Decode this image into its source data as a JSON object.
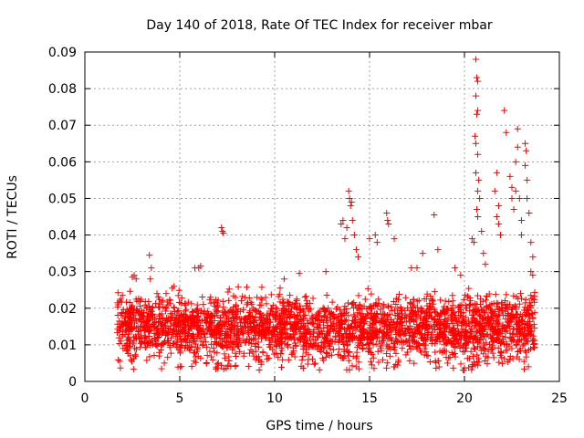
{
  "chart_data": {
    "type": "scatter",
    "title": "Day 140 of 2018, Rate Of TEC Index for receiver mbar",
    "xlabel": "GPS time / hours",
    "ylabel": "ROTI / TECUs",
    "xlim": [
      0,
      25
    ],
    "ylim": [
      0,
      0.09
    ],
    "xticks": [
      0,
      5,
      10,
      15,
      20,
      25
    ],
    "yticks": [
      0,
      0.01,
      0.02,
      0.03,
      0.04,
      0.05,
      0.06,
      0.07,
      0.08,
      0.09
    ],
    "x_tick_labels": [
      "0",
      "5",
      "10",
      "15",
      "20",
      "25"
    ],
    "y_tick_labels": [
      "0",
      "0.01",
      "0.02",
      "0.03",
      "0.04",
      "0.05",
      "0.06",
      "0.07",
      "0.08",
      "0.09"
    ],
    "grid": true,
    "marker": "+",
    "series": [
      {
        "name": "ROTI",
        "color": "#ff0000",
        "background_band": {
          "x_range": [
            1.7,
            23.7
          ],
          "y_typical_range": [
            0.003,
            0.027
          ],
          "approx_point_count": 2800
        },
        "points": [
          [
            2.6,
            0.029
          ],
          [
            2.7,
            0.028
          ],
          [
            2.5,
            0.0285
          ],
          [
            3.4,
            0.0345
          ],
          [
            3.5,
            0.031
          ],
          [
            3.45,
            0.028
          ],
          [
            4.6,
            0.0255
          ],
          [
            4.7,
            0.026
          ],
          [
            5.8,
            0.031
          ],
          [
            6.0,
            0.031
          ],
          [
            6.1,
            0.0315
          ],
          [
            7.2,
            0.042
          ],
          [
            7.25,
            0.041
          ],
          [
            7.3,
            0.0405
          ],
          [
            10.5,
            0.028
          ],
          [
            11.3,
            0.0295
          ],
          [
            12.7,
            0.03
          ],
          [
            13.5,
            0.043
          ],
          [
            13.6,
            0.044
          ],
          [
            13.7,
            0.039
          ],
          [
            13.8,
            0.042
          ],
          [
            13.9,
            0.052
          ],
          [
            13.95,
            0.05
          ],
          [
            14.0,
            0.048
          ],
          [
            14.05,
            0.049
          ],
          [
            14.1,
            0.044
          ],
          [
            14.2,
            0.04
          ],
          [
            14.3,
            0.036
          ],
          [
            14.4,
            0.034
          ],
          [
            15.0,
            0.039
          ],
          [
            15.3,
            0.04
          ],
          [
            15.4,
            0.038
          ],
          [
            15.9,
            0.046
          ],
          [
            15.95,
            0.044
          ],
          [
            16.0,
            0.043
          ],
          [
            16.3,
            0.039
          ],
          [
            17.2,
            0.031
          ],
          [
            17.5,
            0.031
          ],
          [
            17.8,
            0.035
          ],
          [
            18.4,
            0.0455
          ],
          [
            18.6,
            0.036
          ],
          [
            19.5,
            0.031
          ],
          [
            19.8,
            0.029
          ],
          [
            20.4,
            0.039
          ],
          [
            20.5,
            0.038
          ],
          [
            20.6,
            0.088
          ],
          [
            20.65,
            0.083
          ],
          [
            20.7,
            0.082
          ],
          [
            20.6,
            0.078
          ],
          [
            20.7,
            0.074
          ],
          [
            20.65,
            0.073
          ],
          [
            20.55,
            0.067
          ],
          [
            20.6,
            0.065
          ],
          [
            20.7,
            0.062
          ],
          [
            20.6,
            0.057
          ],
          [
            20.75,
            0.055
          ],
          [
            20.7,
            0.052
          ],
          [
            20.8,
            0.05
          ],
          [
            20.65,
            0.047
          ],
          [
            20.7,
            0.045
          ],
          [
            20.9,
            0.041
          ],
          [
            21.0,
            0.035
          ],
          [
            21.1,
            0.032
          ],
          [
            21.6,
            0.052
          ],
          [
            21.7,
            0.057
          ],
          [
            21.8,
            0.048
          ],
          [
            21.7,
            0.045
          ],
          [
            21.8,
            0.043
          ],
          [
            21.9,
            0.04
          ],
          [
            22.1,
            0.074
          ],
          [
            22.2,
            0.068
          ],
          [
            22.4,
            0.056
          ],
          [
            22.5,
            0.053
          ],
          [
            22.5,
            0.05
          ],
          [
            22.6,
            0.047
          ],
          [
            22.7,
            0.06
          ],
          [
            22.8,
            0.069
          ],
          [
            22.8,
            0.064
          ],
          [
            22.7,
            0.052
          ],
          [
            22.9,
            0.05
          ],
          [
            23.0,
            0.044
          ],
          [
            23.0,
            0.04
          ],
          [
            23.2,
            0.065
          ],
          [
            23.25,
            0.063
          ],
          [
            23.2,
            0.059
          ],
          [
            23.3,
            0.055
          ],
          [
            23.3,
            0.05
          ],
          [
            23.4,
            0.046
          ],
          [
            23.5,
            0.038
          ],
          [
            23.6,
            0.034
          ],
          [
            23.5,
            0.03
          ],
          [
            23.6,
            0.029
          ]
        ]
      }
    ]
  }
}
